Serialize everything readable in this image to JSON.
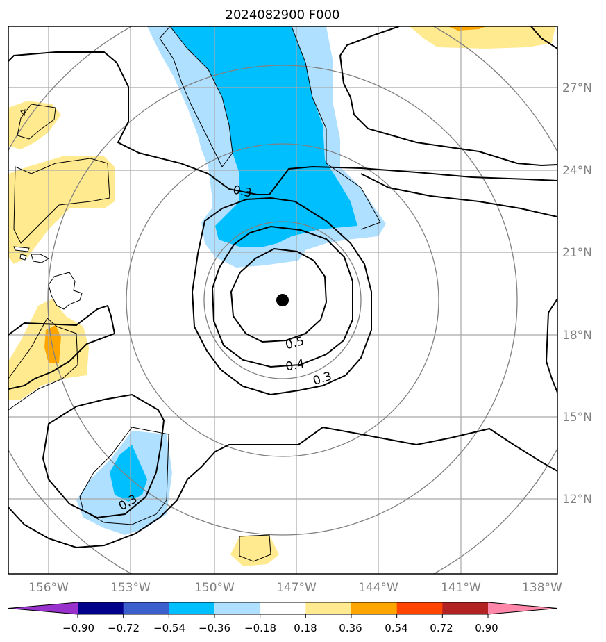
{
  "title": "2024082900 F000",
  "map": {
    "longitude_labels": [
      "156°W",
      "153°W",
      "150°W",
      "147°W",
      "144°W",
      "141°W",
      "138°W"
    ],
    "latitude_labels": [
      "27°N",
      "24°N",
      "21°N",
      "18°N",
      "15°N",
      "12°N"
    ],
    "contour_labels": [
      "0.3",
      "0.5",
      "0.4",
      "0.3",
      "0.3"
    ],
    "storm_center": "black dot"
  },
  "colorbar": {
    "tick_labels": [
      "−0.90",
      "−0.72",
      "−0.54",
      "−0.36",
      "−0.18",
      "0.18",
      "0.36",
      "0.54",
      "0.72",
      "0.90"
    ],
    "colors": [
      "#9932cc",
      "#00008b",
      "#3b5fcd",
      "#00bfff",
      "#b0e0ff",
      "#ffffff",
      "#ffea8f",
      "#ffa500",
      "#ff4500",
      "#b22222",
      "#ff88aa"
    ]
  },
  "colors": {
    "contour": "#000000",
    "grid": "#a0a0a0",
    "range_rings": "#808080",
    "coastline": "#000000",
    "light_blue": "#b0e0ff",
    "blue": "#00bfff",
    "yellow": "#ffea8f",
    "orange": "#ffa500"
  }
}
